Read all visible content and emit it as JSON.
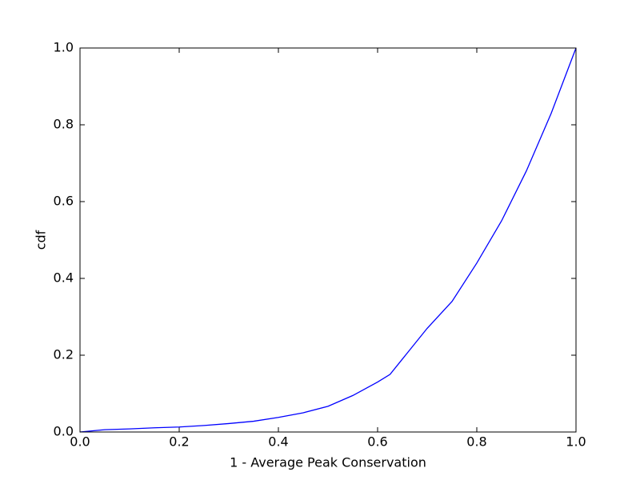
{
  "chart_data": {
    "type": "line",
    "xlabel": "1 - Average Peak Conservation",
    "ylabel": "cdf",
    "x": [
      0,
      0.05,
      0.1,
      0.15,
      0.2,
      0.25,
      0.3,
      0.35,
      0.4,
      0.45,
      0.5,
      0.55,
      0.6,
      0.625,
      0.65,
      0.7,
      0.75,
      0.8,
      0.85,
      0.9,
      0.95,
      1.0
    ],
    "series": [
      {
        "color": "#0000ff",
        "values": [
          0,
          0.006,
          0.008,
          0.011,
          0.013,
          0.017,
          0.022,
          0.028,
          0.038,
          0.05,
          0.067,
          0.095,
          0.13,
          0.15,
          0.19,
          0.27,
          0.34,
          0.44,
          0.55,
          0.68,
          0.83,
          1.0
        ]
      }
    ],
    "xlim": [
      0,
      1
    ],
    "ylim": [
      0,
      1
    ],
    "xticks": [
      {
        "value": 0,
        "label": "0.0"
      },
      0.2,
      0.4,
      0.6,
      0.8,
      {
        "value": 1,
        "label": "1.0"
      }
    ],
    "yticks": [
      {
        "value": 0,
        "label": "0.0"
      },
      0.2,
      0.4,
      0.6,
      0.8,
      {
        "value": 1,
        "label": "1.0"
      }
    ],
    "grid": false
  }
}
